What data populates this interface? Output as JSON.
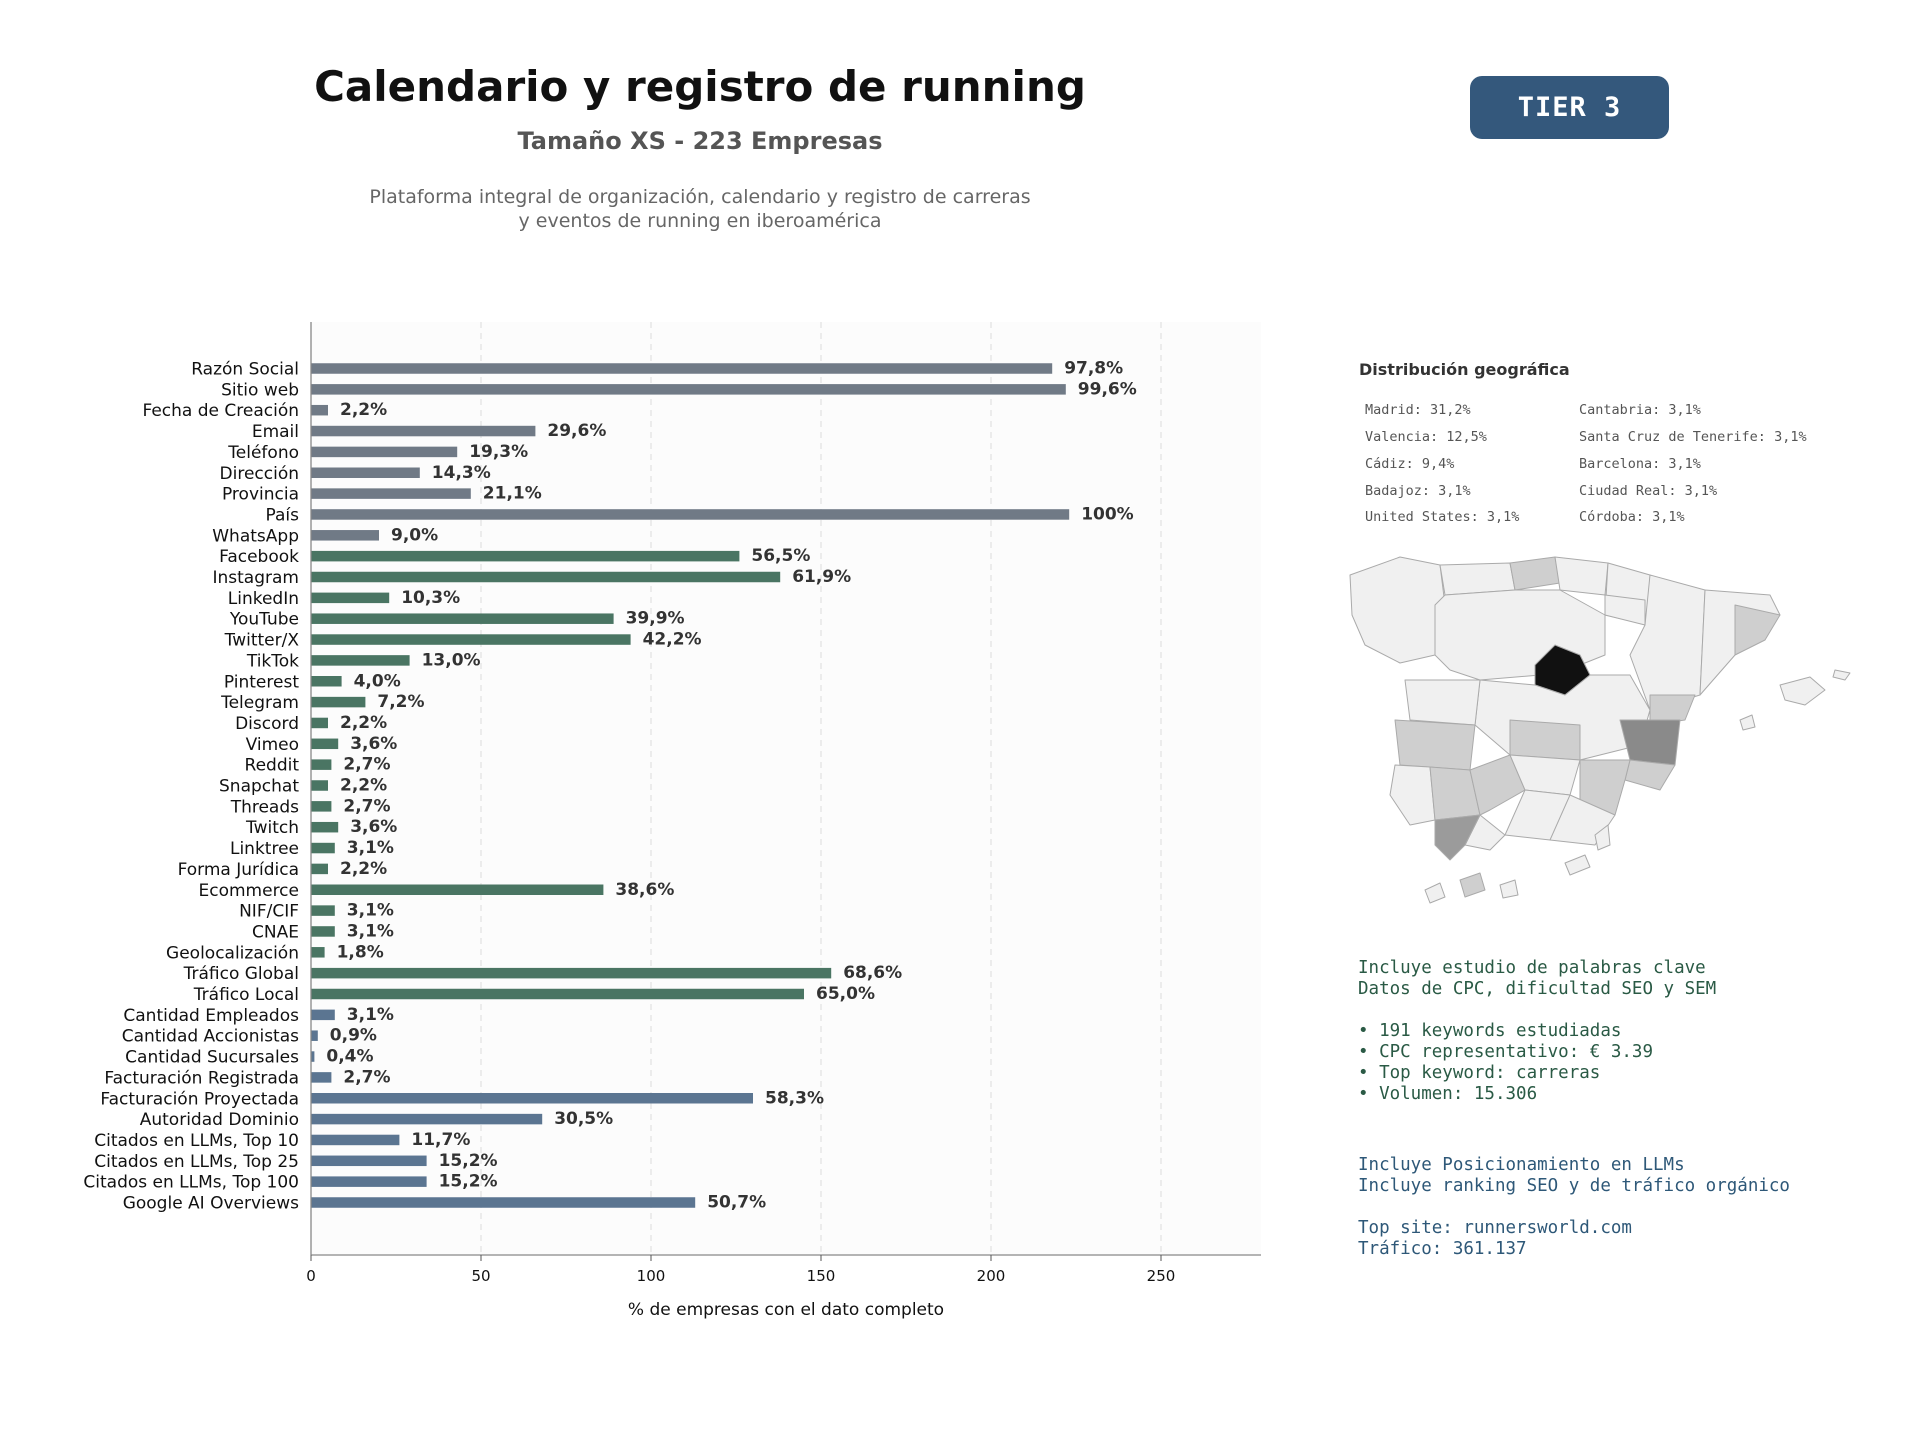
{
  "header": {
    "title": "Calendario y registro de running",
    "subtitle": "Tamaño XS - 223 Empresas",
    "description_line1": "Plataforma integral de organización, calendario y registro de carreras",
    "description_line2": "y eventos de running en iberoamérica",
    "tier": "TIER 3"
  },
  "colors": {
    "gray_bar": "#707a86",
    "green_bar": "#4a7563",
    "blue_bar": "#5b7591",
    "plot_bg": "#fcfcfc",
    "badge": "#34587c",
    "madrid": "#111111",
    "valencia": "#8a8a8a",
    "cadiz": "#9b9b9b",
    "small_share": "#cfcfcf",
    "none": "#f0f0f0"
  },
  "chart_data": {
    "type": "bar",
    "orientation": "horizontal",
    "xlabel": "% de empresas con el dato completo",
    "xlim": [
      0,
      280
    ],
    "xticks": [
      0,
      50,
      100,
      150,
      200,
      250
    ],
    "grid": "vertical dashed",
    "legend": "none",
    "categories": [
      "Razón Social",
      "Sitio web",
      "Fecha de Creación",
      "Email",
      "Teléfono",
      "Dirección",
      "Provincia",
      "País",
      "WhatsApp",
      "Facebook",
      "Instagram",
      "LinkedIn",
      "YouTube",
      "Twitter/X",
      "TikTok",
      "Pinterest",
      "Telegram",
      "Discord",
      "Vimeo",
      "Reddit",
      "Snapchat",
      "Threads",
      "Twitch",
      "Linktree",
      "Forma Jurídica",
      "Ecommerce",
      "NIF/CIF",
      "CNAE",
      "Geolocalización",
      "Tráfico Global",
      "Tráfico Local",
      "Cantidad Empleados",
      "Cantidad Accionistas",
      "Cantidad Sucursales",
      "Facturación Registrada",
      "Facturación Proyectada",
      "Autoridad Dominio",
      "Citados en LLMs, Top 10",
      "Citados en LLMs, Top 25",
      "Citados en LLMs, Top 100",
      "Google AI Overviews"
    ],
    "values": [
      218,
      222,
      5,
      66,
      43,
      32,
      47,
      223,
      20,
      126,
      138,
      23,
      89,
      94,
      29,
      9,
      16,
      5,
      8,
      6,
      5,
      6,
      8,
      7,
      5,
      86,
      7,
      7,
      4,
      153,
      145,
      7,
      2,
      1,
      6,
      130,
      68,
      26,
      34,
      34,
      113
    ],
    "labels": [
      "97,8%",
      "99,6%",
      "2,2%",
      "29,6%",
      "19,3%",
      "14,3%",
      "21,1%",
      "100%",
      "9,0%",
      "56,5%",
      "61,9%",
      "10,3%",
      "39,9%",
      "42,2%",
      "13,0%",
      "4,0%",
      "7,2%",
      "2,2%",
      "3,6%",
      "2,7%",
      "2,2%",
      "2,7%",
      "3,6%",
      "3,1%",
      "2,2%",
      "38,6%",
      "3,1%",
      "3,1%",
      "1,8%",
      "68,6%",
      "65,0%",
      "3,1%",
      "0,9%",
      "0,4%",
      "2,7%",
      "58,3%",
      "30,5%",
      "11,7%",
      "15,2%",
      "15,2%",
      "50,7%"
    ],
    "groups": [
      "gray",
      "gray",
      "gray",
      "gray",
      "gray",
      "gray",
      "gray",
      "gray",
      "gray",
      "green",
      "green",
      "green",
      "green",
      "green",
      "green",
      "green",
      "green",
      "green",
      "green",
      "green",
      "green",
      "green",
      "green",
      "green",
      "green",
      "green",
      "green",
      "green",
      "green",
      "green",
      "green",
      "blue",
      "blue",
      "blue",
      "blue",
      "blue",
      "blue",
      "blue",
      "blue",
      "blue",
      "blue"
    ]
  },
  "geo": {
    "title": "Distribución geográfica",
    "left": [
      "Madrid: 31,2%",
      "Valencia: 12,5%",
      "Cádiz: 9,4%",
      "Badajoz: 3,1%",
      "United States: 3,1%"
    ],
    "right": [
      "Cantabria: 3,1%",
      "Santa Cruz de Tenerife: 3,1%",
      "Barcelona: 3,1%",
      "Ciudad Real: 3,1%",
      "Córdoba: 3,1%"
    ]
  },
  "seo": {
    "line1": "Incluye estudio de palabras clave",
    "line2": "Datos de CPC, dificultad SEO y SEM",
    "bullet1": "• 191 keywords estudiadas",
    "bullet2": "• CPC representativo: € 3.39",
    "bullet3": "• Top keyword: carreras",
    "bullet4": "• Volumen: 15.306"
  },
  "llm": {
    "line1": "Incluye Posicionamiento en LLMs",
    "line2": "Incluye ranking SEO y de tráfico orgánico",
    "top_site": "Top site: runnersworld.com",
    "traffic": "Tráfico: 361.137"
  }
}
